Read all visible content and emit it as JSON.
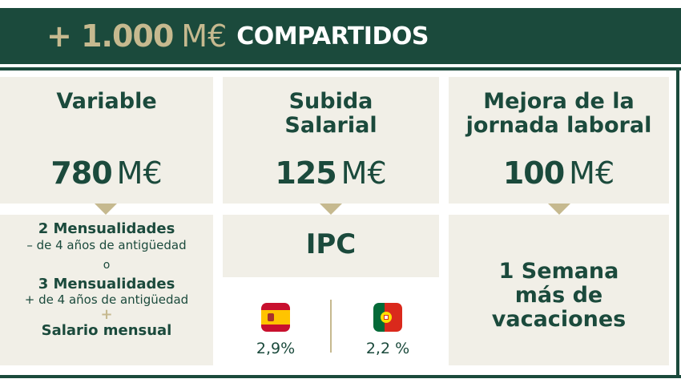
{
  "header": {
    "amount": "+ 1.000",
    "unit": "M€",
    "label": "COMPARTIDOS"
  },
  "columns": [
    {
      "title": "Variable",
      "value": "780",
      "unit": "M€",
      "details": [
        {
          "strong": "2 Mensualidades",
          "small": "– de 4 años de antigüedad"
        },
        {
          "separator": "o"
        },
        {
          "strong": "3 Mensualidades",
          "small": "+ de 4 años de antigüedad"
        },
        {
          "plus": "+"
        },
        {
          "strong": "Salario mensual"
        }
      ]
    },
    {
      "title": "Subida Salarial",
      "value": "125",
      "unit": "M€",
      "detail": "IPC",
      "countries": [
        {
          "flag": "spain-flag-icon",
          "value": "2,9%"
        },
        {
          "flag": "portugal-flag-icon",
          "value": "2,2 %"
        }
      ]
    },
    {
      "title": "Mejora de la jornada laboral",
      "value": "100",
      "unit": "M€",
      "detail": "1 Semana más de vacaciones"
    }
  ],
  "colors": {
    "primary": "#1b4a3c",
    "accent": "#c6b98f",
    "box": "#f1efe7"
  }
}
